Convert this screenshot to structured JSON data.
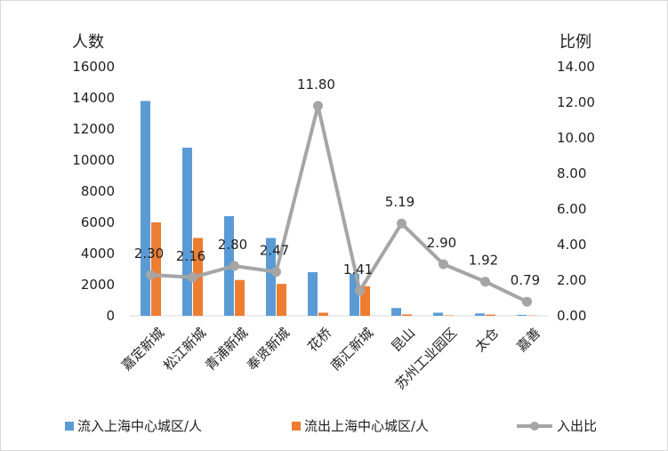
{
  "chart_data": {
    "type": "bar",
    "categories": [
      "嘉定新城",
      "松江新城",
      "青浦新城",
      "奉贤新城",
      "花桥",
      "南汇新城",
      "昆山",
      "苏州工业园区",
      "太仓",
      "嘉善"
    ],
    "series": [
      {
        "name": "流入上海中心城区/人",
        "type": "bar",
        "axis": "left",
        "color": "#5b9bd5",
        "values": [
          13800,
          10800,
          6400,
          5000,
          2800,
          2700,
          500,
          200,
          150,
          60
        ]
      },
      {
        "name": "流出上海中心城区/人",
        "type": "bar",
        "axis": "left",
        "color": "#ed7d31",
        "values": [
          6000,
          5000,
          2300,
          2050,
          200,
          1900,
          90,
          30,
          80,
          20
        ]
      },
      {
        "name": "入出比",
        "type": "line",
        "axis": "right",
        "color": "#a5a5a5",
        "values": [
          2.3,
          2.16,
          2.8,
          2.47,
          11.8,
          1.41,
          5.19,
          2.9,
          1.92,
          0.79
        ],
        "labels": [
          "2.30",
          "2.16",
          "2.80",
          "2.47",
          "11.80",
          "1.41",
          "5.19",
          "2.90",
          "1.92",
          "0.79"
        ]
      }
    ],
    "y_left": {
      "label": "人数",
      "min": 0,
      "max": 16000,
      "step": 2000,
      "ticks": [
        "0",
        "2000",
        "4000",
        "6000",
        "8000",
        "10000",
        "12000",
        "14000",
        "16000"
      ]
    },
    "y_right": {
      "label": "比例",
      "min": 0,
      "max": 14,
      "step": 2,
      "ticks": [
        "0.00",
        "2.00",
        "4.00",
        "6.00",
        "8.00",
        "10.00",
        "12.00",
        "14.00"
      ]
    },
    "grid": false,
    "legend": "bottom"
  }
}
